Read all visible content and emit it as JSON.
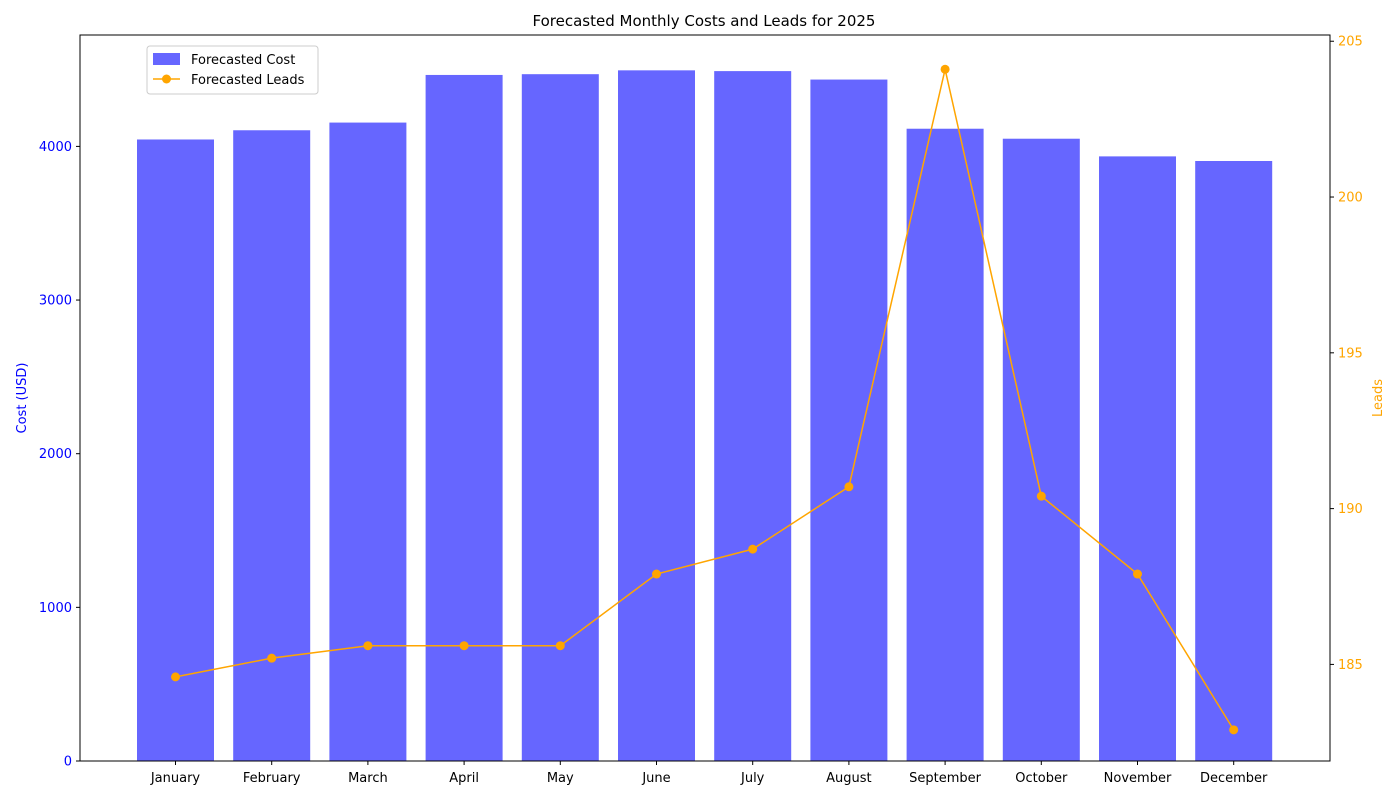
{
  "chart_data": {
    "type": "bar+line",
    "title": "Forecasted Monthly Costs and Leads for 2025",
    "categories": [
      "January",
      "February",
      "March",
      "April",
      "May",
      "June",
      "July",
      "August",
      "September",
      "October",
      "November",
      "December"
    ],
    "series": [
      {
        "name": "Forecasted Cost",
        "type": "bar",
        "axis": "left",
        "color": "#6666ff",
        "values": [
          4045,
          4105,
          4155,
          4465,
          4470,
          4495,
          4490,
          4435,
          4115,
          4050,
          3935,
          3905
        ]
      },
      {
        "name": "Forecasted Leads",
        "type": "line",
        "axis": "right",
        "color": "#ffa500",
        "values": [
          184.6,
          185.2,
          185.6,
          185.6,
          185.6,
          187.9,
          188.7,
          190.7,
          204.1,
          190.4,
          187.9,
          182.9
        ]
      }
    ],
    "y_left": {
      "label": "Cost (USD)",
      "color": "#0000ff",
      "min": 0,
      "max": 4725,
      "ticks": [
        0,
        1000,
        2000,
        3000,
        4000
      ]
    },
    "y_right": {
      "label": "Leads",
      "color": "#ffa500",
      "min": 181.9,
      "max": 205.2,
      "ticks": [
        185,
        190,
        195,
        200,
        205
      ]
    },
    "legend_position": "upper-left",
    "grid": false
  }
}
